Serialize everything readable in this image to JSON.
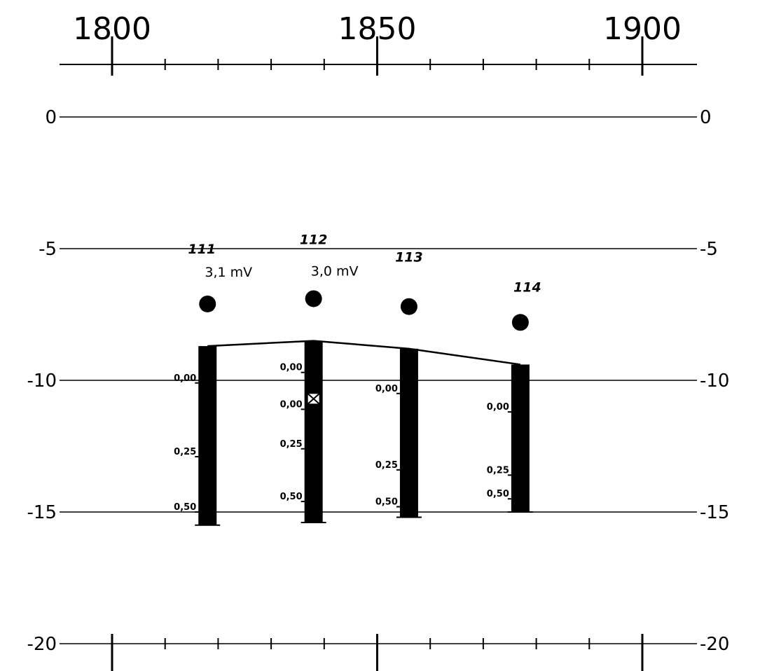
{
  "chart_data": {
    "type": "scatter",
    "top_axis": {
      "labels": [
        "1800",
        "1850",
        "1900"
      ],
      "values": [
        1800,
        1850,
        1900
      ],
      "minor_step": 10,
      "range": [
        1790,
        1910
      ]
    },
    "depth_axis": {
      "labels": [
        "0",
        "-5",
        "-10",
        "-15",
        "-20"
      ],
      "values": [
        0,
        -5,
        -10,
        -15,
        -20
      ]
    },
    "boreholes": [
      {
        "id": "111",
        "x": 1818,
        "top": -8.7,
        "bottom": -15.5,
        "marker_depth": -7.1,
        "voltage": "3,1 mV",
        "scale_marks": [
          {
            "label": "0,00",
            "depth": -10.1
          },
          {
            "label": "0,25",
            "depth": -12.9
          },
          {
            "label": "0,50",
            "depth": -15.0
          }
        ],
        "cross": null
      },
      {
        "id": "112",
        "x": 1838,
        "top": -8.5,
        "bottom": -15.4,
        "marker_depth": -6.9,
        "voltage": "3,0 mV",
        "scale_marks": [
          {
            "label": "0,00",
            "depth": -9.7
          },
          {
            "label": "0,00",
            "depth": -11.1
          },
          {
            "label": "0,25",
            "depth": -12.6
          },
          {
            "label": "0,50",
            "depth": -14.6
          }
        ],
        "cross": -10.7
      },
      {
        "id": "113",
        "x": 1856,
        "top": -8.8,
        "bottom": -15.2,
        "marker_depth": -7.2,
        "voltage": "",
        "scale_marks": [
          {
            "label": "0,00",
            "depth": -10.5
          },
          {
            "label": "0,25",
            "depth": -13.4
          },
          {
            "label": "0,50",
            "depth": -14.8
          }
        ],
        "cross": null
      },
      {
        "id": "114",
        "x": 1877,
        "top": -9.4,
        "bottom": -15.0,
        "marker_depth": -7.8,
        "voltage": "",
        "scale_marks": [
          {
            "label": "0,00",
            "depth": -11.2
          },
          {
            "label": "0,25",
            "depth": -13.6
          },
          {
            "label": "0,50",
            "depth": -14.5
          }
        ],
        "cross": null
      }
    ]
  }
}
